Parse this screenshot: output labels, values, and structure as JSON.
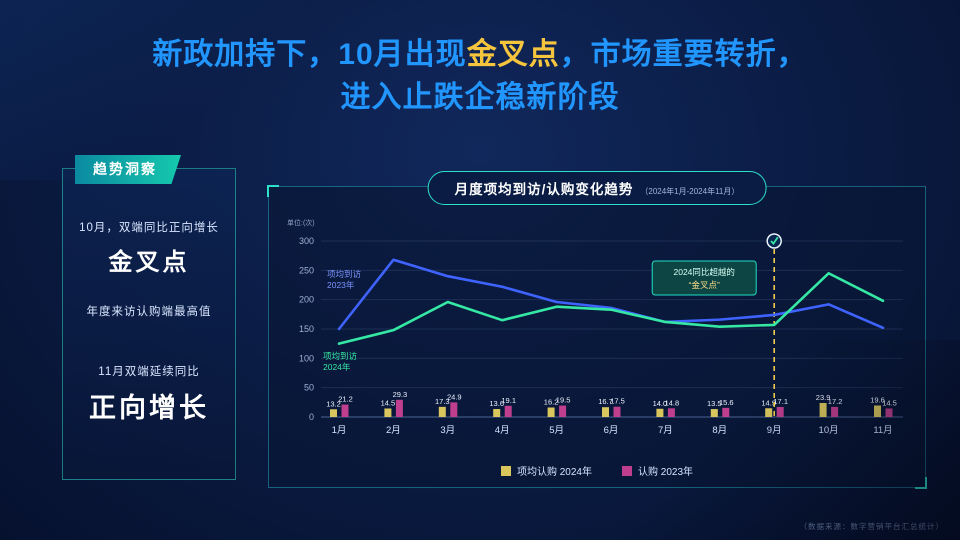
{
  "title": {
    "part1": "新政加持下，10月出现",
    "highlight": "金叉点",
    "part2": "，市场重要转折，",
    "line2": "进入止跌企稳新阶段"
  },
  "insight": {
    "header": "趋势洞察",
    "line1": "10月，双端同比正向增长",
    "big1": "金叉点",
    "line2": "年度来访认购端最高值",
    "line3": "11月双端延续同比",
    "big2": "正向增长"
  },
  "footnote": "（数据来源：数字营销平台汇总统计）",
  "colors": {
    "title_blue": "#2196ff",
    "gold": "#f6c53e",
    "teal": "#2de0c8",
    "line_2023": "#3f63ff",
    "line_2024": "#35e8a4",
    "bar_2024": "#d9c75e",
    "bar_2023": "#bf3f8e"
  },
  "chart_data": {
    "type": "line+bar",
    "title": "月度项均到访/认购变化趋势",
    "subtitle": "（2024年1月-2024年11月）",
    "unit_label": "单位:(次)",
    "categories": [
      "1月",
      "2月",
      "3月",
      "4月",
      "5月",
      "6月",
      "7月",
      "8月",
      "9月",
      "10月",
      "11月"
    ],
    "ylim": [
      0,
      300
    ],
    "yticks": [
      0,
      50,
      100,
      150,
      200,
      250,
      300
    ],
    "series": [
      {
        "name": "项均到访 2023年",
        "type": "line",
        "color": "#3f63ff",
        "values": [
          150,
          268,
          240,
          222,
          196,
          186,
          162,
          166,
          174,
          192,
          152
        ]
      },
      {
        "name": "项均到访 2024年",
        "type": "line",
        "color": "#35e8a4",
        "values": [
          125,
          148,
          196,
          165,
          188,
          183,
          162,
          154,
          157,
          245,
          198
        ]
      },
      {
        "name": "项均认购 2024年",
        "type": "bar",
        "color": "#d9c75e",
        "values": [
          13.2,
          14.5,
          17.3,
          13.6,
          16.2,
          16.7,
          14.0,
          13.5,
          14.9,
          23.9,
          19.6
        ]
      },
      {
        "name": "认购 2023年",
        "type": "bar",
        "color": "#bf3f8e",
        "values": [
          21.2,
          29.3,
          24.9,
          19.1,
          19.5,
          17.5,
          14.8,
          15.6,
          17.1,
          17.2,
          14.5
        ]
      }
    ],
    "line_labels": [
      {
        "text": "项均到访",
        "year": "2023年"
      },
      {
        "text": "项均到访",
        "year": "2024年"
      }
    ],
    "annotation": {
      "line1": "2024同比超越的",
      "line2": "“金叉点”",
      "month_index": 8
    },
    "legend": [
      {
        "label": "项均认购 2024年",
        "color": "#d9c75e"
      },
      {
        "label": "认购 2023年",
        "color": "#bf3f8e"
      }
    ]
  }
}
